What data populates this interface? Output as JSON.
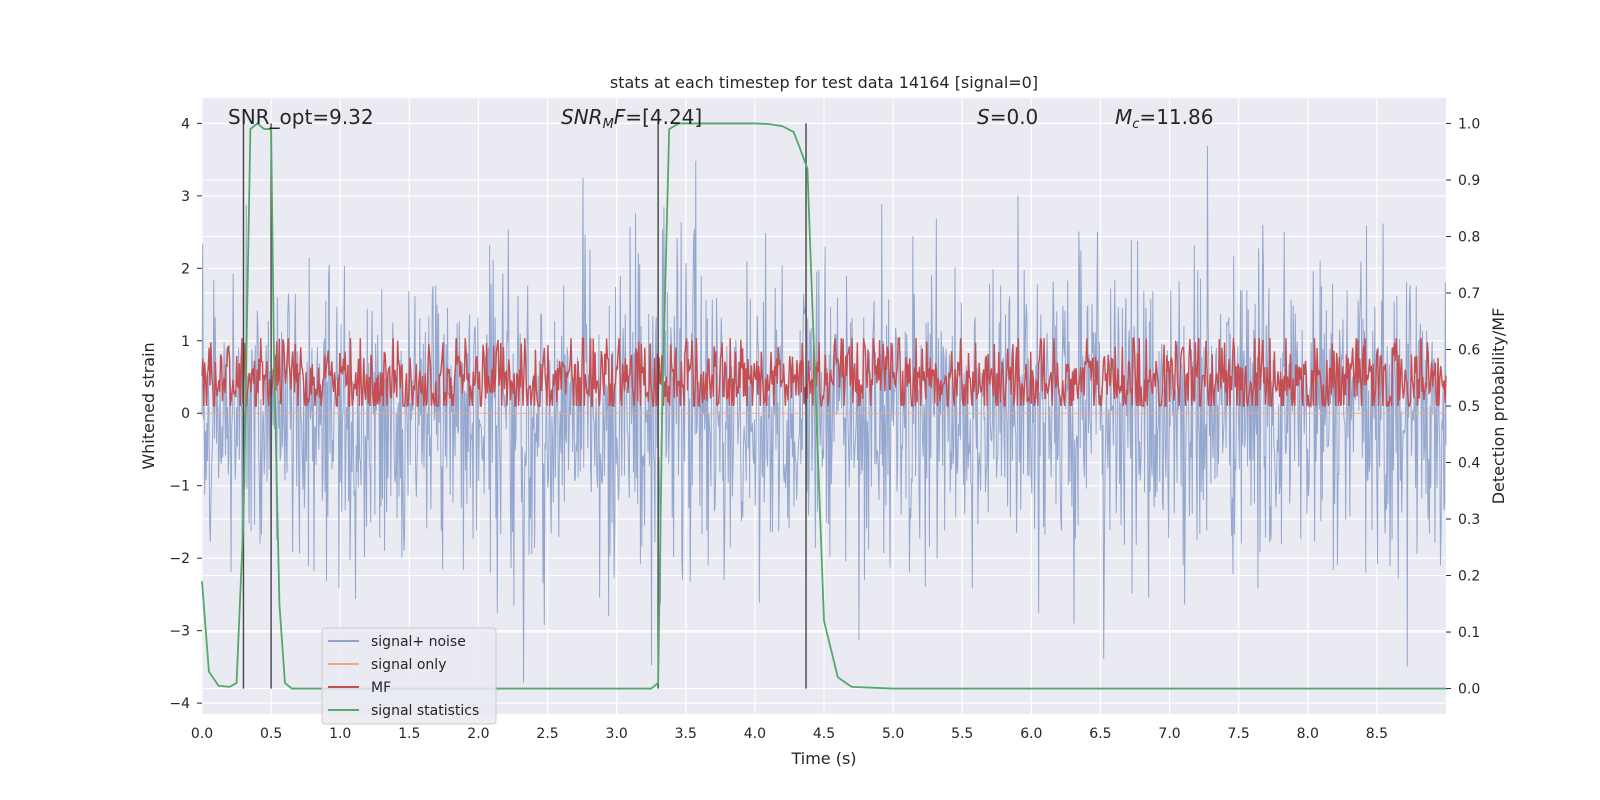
{
  "chart_data": {
    "type": "line",
    "title": "stats at each timestep for test data 14164 [signal=0]",
    "xlabel": "Time (s)",
    "ylabel_left": "Whitened strain",
    "ylabel_right": "Detection probability/MF",
    "xlim": [
      0,
      9.0
    ],
    "ylim_left": [
      -4.15,
      4.35
    ],
    "ylim_right": [
      -0.045,
      1.045
    ],
    "x_ticks": [
      0.0,
      0.5,
      1.0,
      1.5,
      2.0,
      2.5,
      3.0,
      3.5,
      4.0,
      4.5,
      5.0,
      5.5,
      6.0,
      6.5,
      7.0,
      7.5,
      8.0,
      8.5
    ],
    "x_tick_labels": [
      "0.0",
      "0.5",
      "1.0",
      "1.5",
      "2.0",
      "2.5",
      "3.0",
      "3.5",
      "4.0",
      "4.5",
      "5.0",
      "5.5",
      "6.0",
      "6.5",
      "7.0",
      "7.5",
      "8.0",
      "8.5"
    ],
    "y_left_ticks": [
      4,
      3,
      2,
      1,
      0,
      -1,
      -2,
      -3,
      -4
    ],
    "y_left_tick_labels": [
      "4",
      "3",
      "2",
      "1",
      "0",
      "−1",
      "−2",
      "−3",
      "−4"
    ],
    "y_right_ticks": [
      1.0,
      0.9,
      0.8,
      0.7,
      0.6,
      0.5,
      0.4,
      0.3,
      0.2,
      0.1,
      0.0
    ],
    "y_right_tick_labels": [
      "1.0",
      "0.9",
      "0.8",
      "0.7",
      "0.6",
      "0.5",
      "0.4",
      "0.3",
      "0.2",
      "0.1",
      "0.0"
    ],
    "grid": true,
    "legend_position": "lower-left",
    "annotations": {
      "snr_opt": {
        "name": "SNR_opt",
        "value": "9.32"
      },
      "snr_mf": {
        "base": "SNR",
        "sub": "M",
        "tail": "F",
        "value": "[4.24]"
      },
      "s": {
        "name": "S",
        "value": "0.0"
      },
      "mc": {
        "base": "M",
        "sub": "c",
        "value": "11.86"
      }
    },
    "vertical_lines_x": [
      0.3,
      0.5,
      3.3,
      4.37
    ],
    "series": [
      {
        "name": "signal+ noise",
        "color": "#8fa3cc",
        "axis": "left",
        "kind": "noise",
        "mean": 0.0,
        "std": 1.05,
        "peak": 4.0,
        "trough": -3.8
      },
      {
        "name": "signal only",
        "color": "#e8a98c",
        "axis": "left",
        "kind": "flat",
        "value": 0.0
      },
      {
        "name": "MF",
        "color": "#c44e52",
        "axis": "right",
        "kind": "noise",
        "mean": 0.545,
        "std": 0.04,
        "min": 0.5,
        "max": 0.62
      },
      {
        "name": "signal statistics",
        "color": "#55a868",
        "axis": "right",
        "kind": "line",
        "x": [
          0.0,
          0.05,
          0.12,
          0.2,
          0.25,
          0.3,
          0.35,
          0.4,
          0.45,
          0.5,
          0.52,
          0.56,
          0.6,
          0.65,
          0.7,
          1.0,
          2.0,
          3.0,
          3.25,
          3.3,
          3.33,
          3.38,
          3.45,
          3.6,
          4.0,
          4.1,
          4.2,
          4.28,
          4.32,
          4.38,
          4.42,
          4.5,
          4.6,
          4.7,
          5.0,
          6.0,
          7.0,
          8.0,
          9.0
        ],
        "y": [
          0.19,
          0.03,
          0.005,
          0.003,
          0.01,
          0.3,
          0.99,
          1.0,
          0.99,
          0.99,
          0.6,
          0.15,
          0.01,
          0.0,
          0.0,
          0.0,
          0.0,
          0.0,
          0.0,
          0.01,
          0.5,
          0.99,
          1.0,
          1.0,
          1.0,
          0.999,
          0.995,
          0.985,
          0.96,
          0.92,
          0.65,
          0.12,
          0.02,
          0.003,
          0.0,
          0.0,
          0.0,
          0.0,
          0.0
        ]
      }
    ]
  }
}
